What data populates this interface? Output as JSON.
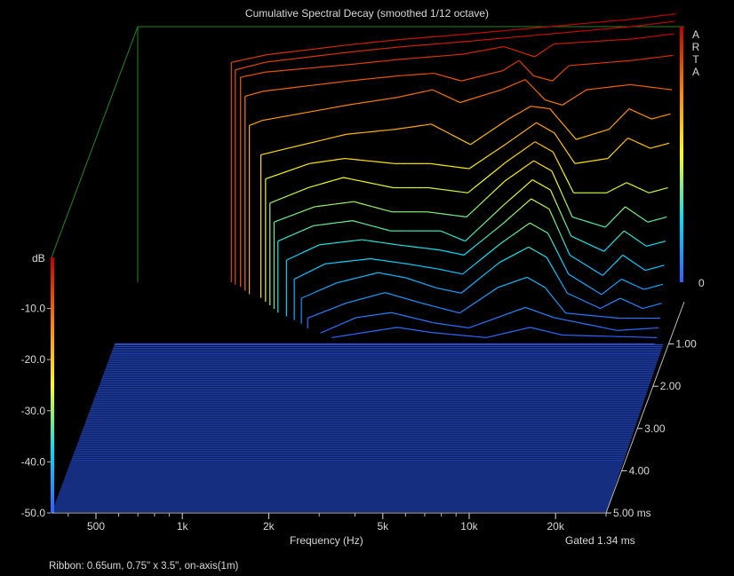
{
  "chart_data": {
    "type": "waterfall",
    "title": "Cumulative Spectral Decay (smoothed 1/12 octave)",
    "xlabel": "Frequency (Hz)",
    "x_scale": "log",
    "xlim": [
      350,
      30000
    ],
    "x_ticks": [
      500,
      1000,
      2000,
      5000,
      10000,
      20000
    ],
    "x_tick_labels": [
      "500",
      "1k",
      "2k",
      "5k",
      "10k",
      "20k"
    ],
    "zlabel": "dB",
    "zlim": [
      -50,
      0
    ],
    "z_ticks": [
      -10,
      -20,
      -30,
      -40,
      -50
    ],
    "z_tick_labels": [
      "-10.0",
      "-20.0",
      "-30.0",
      "-40.0",
      "-50.0"
    ],
    "right_z_tick": "0",
    "time_ticks": [
      1,
      2,
      3,
      4,
      5
    ],
    "time_tick_labels": [
      "1.00",
      "2.00",
      "3.00",
      "4.00",
      "5.00 ms"
    ],
    "time_range_ms": [
      0,
      5
    ],
    "gate_note": "Gated 1.34 ms",
    "brand": "ARTA",
    "colormap": [
      "#3060ff",
      "#00e0ff",
      "#ffff00",
      "#ff8000",
      "#c00000"
    ],
    "grid": false,
    "visible_slices": [
      {
        "t": 0.0,
        "points": [
          [
            750,
            -7
          ],
          [
            1000,
            -5.5
          ],
          [
            2000,
            -3.5
          ],
          [
            3000,
            -2.5
          ],
          [
            5000,
            -1.5
          ],
          [
            10000,
            0
          ],
          [
            20000,
            1.5
          ],
          [
            28000,
            2.5
          ]
        ]
      },
      {
        "t": 0.05,
        "points": [
          [
            780,
            -8
          ],
          [
            1000,
            -6.5
          ],
          [
            2000,
            -4.5
          ],
          [
            3000,
            -3.5
          ],
          [
            5000,
            -2.5
          ],
          [
            10000,
            -1
          ],
          [
            20000,
            0.5
          ],
          [
            28000,
            1.5
          ]
        ]
      },
      {
        "t": 0.1,
        "points": [
          [
            820,
            -9
          ],
          [
            1000,
            -8
          ],
          [
            2000,
            -6.5
          ],
          [
            3000,
            -5.5
          ],
          [
            5000,
            -4.5
          ],
          [
            7000,
            -3
          ],
          [
            9000,
            -5
          ],
          [
            10500,
            -2.5
          ],
          [
            20000,
            -1.5
          ],
          [
            28000,
            -0.5
          ]
        ]
      },
      {
        "t": 0.18,
        "points": [
          [
            860,
            -12
          ],
          [
            1000,
            -11
          ],
          [
            2000,
            -9
          ],
          [
            3000,
            -8
          ],
          [
            4000,
            -7.5
          ],
          [
            5000,
            -9
          ],
          [
            7000,
            -7
          ],
          [
            8000,
            -5
          ],
          [
            9000,
            -8
          ],
          [
            10500,
            -9
          ],
          [
            12000,
            -6
          ],
          [
            20000,
            -5
          ],
          [
            28000,
            -4
          ]
        ]
      },
      {
        "t": 0.26,
        "points": [
          [
            900,
            -17
          ],
          [
            1000,
            -16
          ],
          [
            2000,
            -13
          ],
          [
            3000,
            -11.5
          ],
          [
            4000,
            -10
          ],
          [
            5000,
            -12.5
          ],
          [
            7000,
            -10
          ],
          [
            8500,
            -8
          ],
          [
            10000,
            -12
          ],
          [
            11500,
            -13
          ],
          [
            14000,
            -10
          ],
          [
            20000,
            -9
          ],
          [
            28000,
            -10
          ]
        ]
      },
      {
        "t": 0.34,
        "points": [
          [
            1000,
            -22
          ],
          [
            2000,
            -18
          ],
          [
            3000,
            -17
          ],
          [
            4000,
            -16
          ],
          [
            5500,
            -20
          ],
          [
            7500,
            -15
          ],
          [
            9000,
            -12.5
          ],
          [
            10500,
            -13
          ],
          [
            13000,
            -19
          ],
          [
            17000,
            -17
          ],
          [
            20000,
            -13
          ],
          [
            24000,
            -15
          ],
          [
            28000,
            -14
          ]
        ]
      },
      {
        "t": 0.42,
        "points": [
          [
            1050,
            -26
          ],
          [
            1500,
            -23
          ],
          [
            2000,
            -22
          ],
          [
            3000,
            -23
          ],
          [
            4000,
            -23
          ],
          [
            5500,
            -24
          ],
          [
            7500,
            -19
          ],
          [
            9500,
            -15
          ],
          [
            11000,
            -17
          ],
          [
            13000,
            -23
          ],
          [
            17000,
            -22
          ],
          [
            20000,
            -18
          ],
          [
            24000,
            -20
          ],
          [
            28000,
            -19
          ]
        ]
      },
      {
        "t": 0.5,
        "points": [
          [
            1100,
            -30
          ],
          [
            1500,
            -27
          ],
          [
            2000,
            -25
          ],
          [
            3000,
            -27
          ],
          [
            4000,
            -27
          ],
          [
            5500,
            -28
          ],
          [
            7500,
            -22
          ],
          [
            9500,
            -18
          ],
          [
            11000,
            -20
          ],
          [
            13000,
            -28
          ],
          [
            17000,
            -28
          ],
          [
            20000,
            -26
          ],
          [
            24000,
            -28
          ],
          [
            28000,
            -27
          ]
        ]
      },
      {
        "t": 0.58,
        "points": [
          [
            1150,
            -33
          ],
          [
            1600,
            -30
          ],
          [
            2200,
            -29
          ],
          [
            3000,
            -31
          ],
          [
            4000,
            -31
          ],
          [
            5500,
            -32
          ],
          [
            7500,
            -25
          ],
          [
            9500,
            -21
          ],
          [
            11000,
            -23
          ],
          [
            13000,
            -32
          ],
          [
            17000,
            -34
          ],
          [
            20000,
            -30
          ],
          [
            24000,
            -33
          ],
          [
            28000,
            -32
          ]
        ]
      },
      {
        "t": 0.66,
        "points": [
          [
            1200,
            -36
          ],
          [
            1600,
            -33
          ],
          [
            2200,
            -32
          ],
          [
            3000,
            -34
          ],
          [
            4500,
            -34
          ],
          [
            5500,
            -36
          ],
          [
            7500,
            -29
          ],
          [
            9500,
            -24
          ],
          [
            11000,
            -26
          ],
          [
            13000,
            -35
          ],
          [
            17000,
            -38
          ],
          [
            20000,
            -34
          ],
          [
            24000,
            -37
          ],
          [
            28000,
            -36
          ]
        ]
      },
      {
        "t": 0.74,
        "points": [
          [
            1300,
            -39
          ],
          [
            1700,
            -36
          ],
          [
            2400,
            -35
          ],
          [
            3200,
            -36
          ],
          [
            4500,
            -37
          ],
          [
            5500,
            -38
          ],
          [
            7500,
            -32
          ],
          [
            9500,
            -27
          ],
          [
            11000,
            -29
          ],
          [
            13000,
            -38
          ],
          [
            17000,
            -42
          ],
          [
            20000,
            -38
          ],
          [
            24000,
            -41
          ],
          [
            28000,
            -40
          ]
        ]
      },
      {
        "t": 0.82,
        "points": [
          [
            1400,
            -42
          ],
          [
            1800,
            -39
          ],
          [
            2600,
            -38
          ],
          [
            3500,
            -39
          ],
          [
            4500,
            -40
          ],
          [
            5500,
            -41
          ],
          [
            7500,
            -35
          ],
          [
            9500,
            -31
          ],
          [
            11000,
            -33
          ],
          [
            13000,
            -41
          ],
          [
            17000,
            -45
          ],
          [
            20000,
            -42
          ],
          [
            24000,
            -44
          ],
          [
            28000,
            -43
          ]
        ]
      },
      {
        "t": 0.9,
        "points": [
          [
            1500,
            -45
          ],
          [
            2000,
            -42
          ],
          [
            2800,
            -40
          ],
          [
            3500,
            -41
          ],
          [
            4500,
            -43
          ],
          [
            5500,
            -44
          ],
          [
            7500,
            -38
          ],
          [
            9500,
            -35
          ],
          [
            11000,
            -37
          ],
          [
            13000,
            -44
          ],
          [
            17000,
            -47
          ],
          [
            20000,
            -45
          ],
          [
            24000,
            -47
          ],
          [
            28000,
            -46
          ]
        ]
      },
      {
        "t": 1.0,
        "points": [
          [
            1600,
            -48
          ],
          [
            2200,
            -45
          ],
          [
            3000,
            -43
          ],
          [
            4000,
            -45
          ],
          [
            5500,
            -47
          ],
          [
            7500,
            -42
          ],
          [
            9500,
            -40
          ],
          [
            11000,
            -42
          ],
          [
            13000,
            -47
          ],
          [
            20000,
            -48
          ],
          [
            28000,
            -48
          ]
        ]
      },
      {
        "t": 1.1,
        "points": [
          [
            1800,
            -50
          ],
          [
            2400,
            -47
          ],
          [
            3200,
            -46
          ],
          [
            4500,
            -48
          ],
          [
            6000,
            -49
          ],
          [
            9500,
            -45
          ],
          [
            12000,
            -47
          ],
          [
            20000,
            -49.5
          ],
          [
            28000,
            -49
          ]
        ]
      },
      {
        "t": 1.2,
        "points": [
          [
            2000,
            -50
          ],
          [
            2600,
            -49
          ],
          [
            3400,
            -48
          ],
          [
            4500,
            -49
          ],
          [
            7000,
            -50
          ],
          [
            10000,
            -48
          ],
          [
            13000,
            -49.5
          ],
          [
            28000,
            -50
          ]
        ]
      },
      {
        "t": 1.34,
        "points": [
          [
            350,
            -50
          ],
          [
            28000,
            -50
          ]
        ]
      }
    ]
  },
  "footnote": "Ribbon: 0.65um, 0.75\" x 3.5\", on-axis(1m)"
}
